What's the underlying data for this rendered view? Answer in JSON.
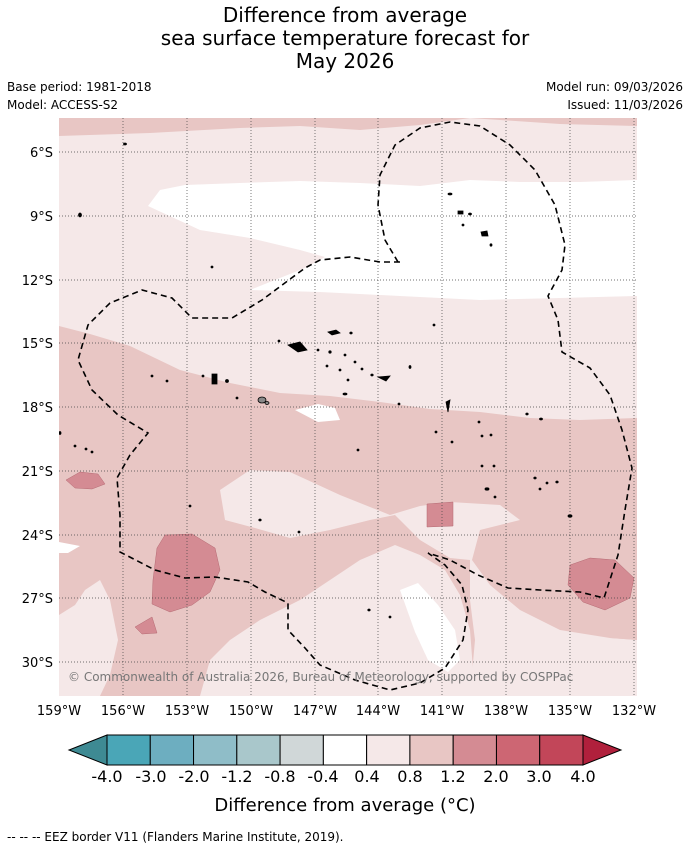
{
  "title": {
    "line1": "Difference from average",
    "line2": "sea surface temperature forecast for",
    "line3": "May 2026"
  },
  "meta": {
    "base_period": "Base period: 1981-2018",
    "model": "Model: ACCESS-S2",
    "model_run": "Model run: 09/03/2026",
    "issued": "Issued: 11/03/2026"
  },
  "map": {
    "lat_labels": [
      "6°S",
      "9°S",
      "12°S",
      "15°S",
      "18°S",
      "21°S",
      "24°S",
      "27°S",
      "30°S"
    ],
    "lon_labels": [
      "159°W",
      "156°W",
      "153°W",
      "150°W",
      "147°W",
      "144°W",
      "141°W",
      "138°W",
      "135°W",
      "132°W"
    ],
    "copyright": "© Commonwealth of Australia 2026, Bureau of Meteorology, supported by COSPPac",
    "colors": {
      "anomaly_0_4_0_8": "#f5e8e8",
      "anomaly_0_8_1_2": "#e8c6c4",
      "anomaly_1_2_2_0": "#d48b93",
      "neutral": "#ffffff"
    }
  },
  "colorbar": {
    "title": "Difference from average (°C)",
    "tick_labels": [
      "-4.0",
      "-3.0",
      "-2.0",
      "-1.2",
      "-0.8",
      "-0.4",
      "0.4",
      "0.8",
      "1.2",
      "2.0",
      "3.0",
      "4.0"
    ],
    "colors": [
      "#3e8a93",
      "#4aa6b7",
      "#6daec0",
      "#8fbdc8",
      "#a9c7cb",
      "#d0d7d8",
      "#ffffff",
      "#f5e8e8",
      "#e8c6c4",
      "#d48b93",
      "#cd6673",
      "#c24659",
      "#b0203c"
    ]
  },
  "footnote": "--  --  -- EEZ border V11 (Flanders Marine Institute, 2019)."
}
